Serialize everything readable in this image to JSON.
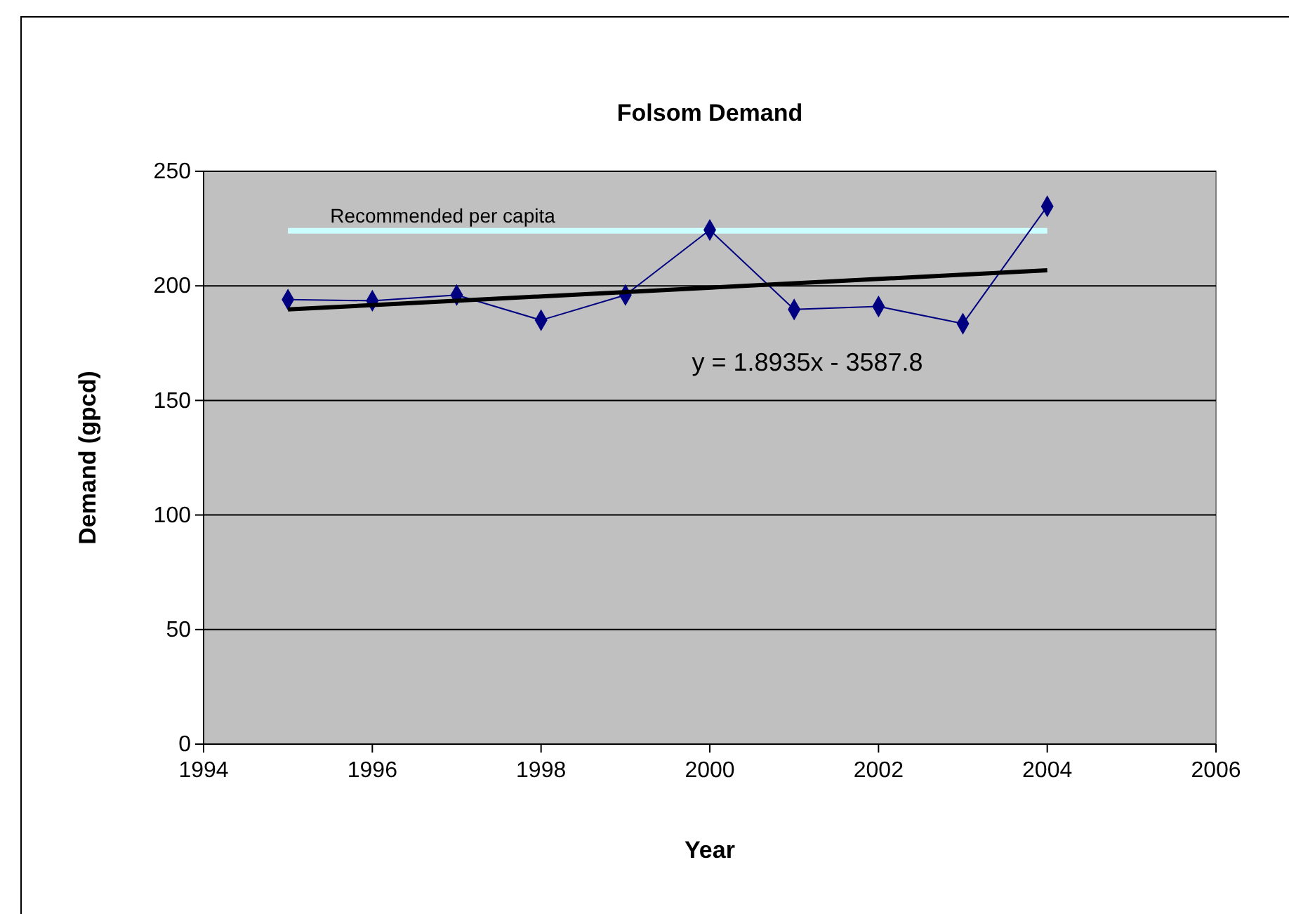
{
  "chart_data": {
    "type": "line",
    "title": "Folsom Demand",
    "xlabel": "Year",
    "ylabel": "Demand (gpcd)",
    "xlim": [
      1994,
      2006
    ],
    "xticks": [
      1994,
      1996,
      1998,
      2000,
      2002,
      2004,
      2006
    ],
    "ylim": [
      0,
      250
    ],
    "yticks": [
      0,
      50,
      100,
      150,
      200,
      250
    ],
    "grid": "y",
    "marker": "diamond",
    "series": [
      {
        "color": "#000080",
        "x": [
          1995,
          1996,
          1997,
          1998,
          1999,
          2000,
          2001,
          2002,
          2003,
          2004
        ],
        "values": [
          194,
          193.5,
          196,
          185,
          196,
          224.4,
          189.7,
          191,
          183.5,
          234.7
        ]
      },
      {
        "type": "line",
        "color": "#000000",
        "marker": "none",
        "x": [
          1995,
          2004
        ],
        "values": [
          189.7,
          206.8
        ]
      }
    ],
    "ref_lines": [
      {
        "axis": "y",
        "value": 224,
        "label": "Recommended per capita",
        "color": "#ccffff"
      }
    ],
    "annotations": [
      "y = 1.8935x - 3587.8"
    ]
  }
}
